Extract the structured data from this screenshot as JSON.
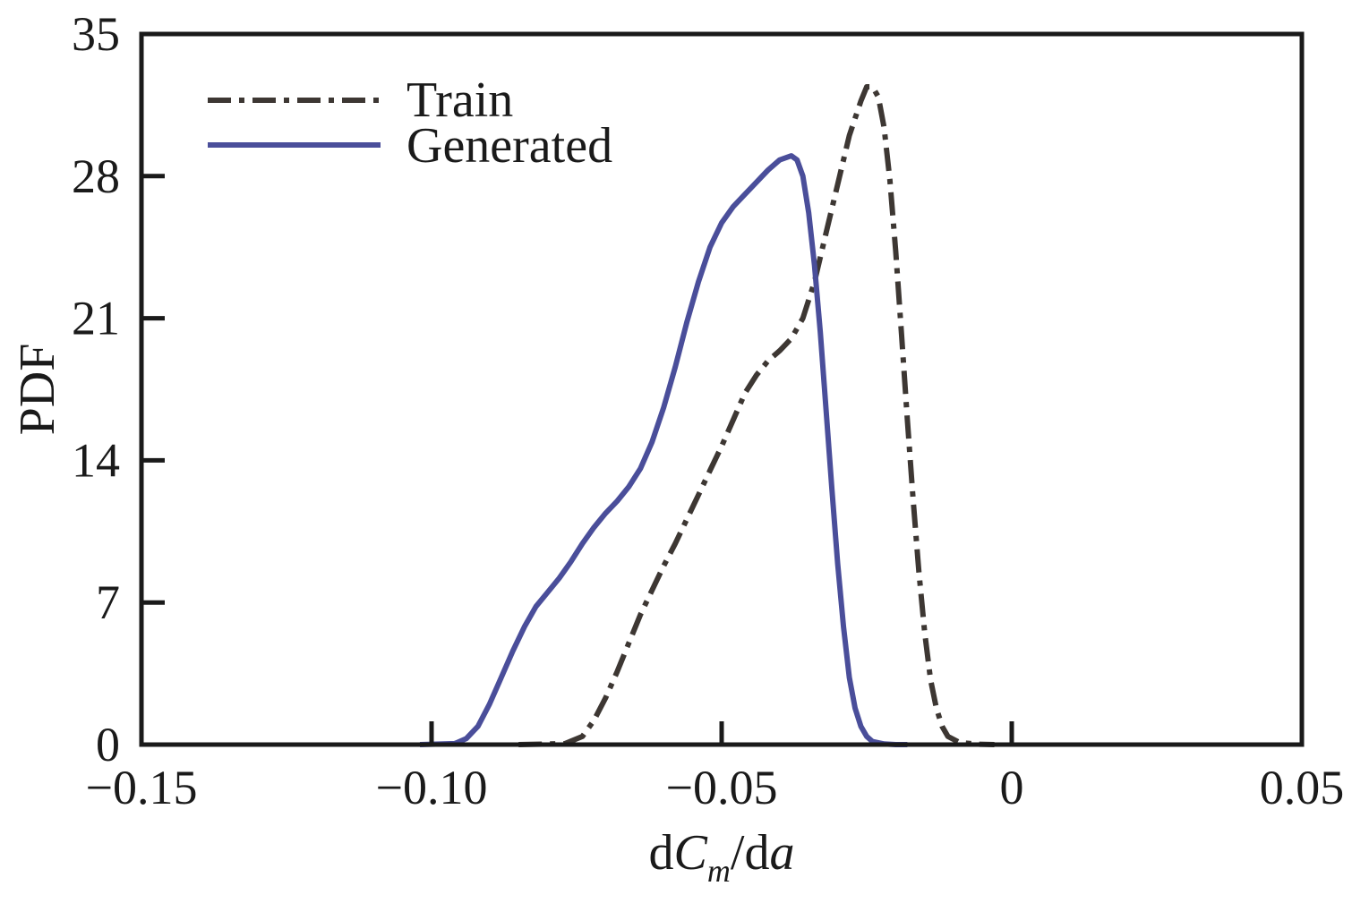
{
  "chart_data": {
    "type": "line",
    "title": "",
    "xlabel": {
      "prefix": "d",
      "var": "C",
      "sub": "m",
      "mid": "/d",
      "var2": "a"
    },
    "ylabel": "PDF",
    "xlim": [
      -0.15,
      0.05
    ],
    "ylim": [
      0,
      35
    ],
    "xticks": [
      -0.15,
      -0.1,
      -0.05,
      0,
      0.05
    ],
    "xtick_labels": [
      "−0.15",
      "−0.10",
      "−0.05",
      "0",
      "0.05"
    ],
    "yticks": [
      0,
      7,
      14,
      21,
      28,
      35
    ],
    "ytick_labels": [
      "0",
      "7",
      "14",
      "21",
      "28",
      "35"
    ],
    "grid": false,
    "legend_position": "top-left",
    "series": [
      {
        "name": "Train",
        "color": "#3d3733",
        "dash": "dashdot",
        "x": [
          -0.085,
          -0.077,
          -0.074,
          -0.072,
          -0.07,
          -0.068,
          -0.066,
          -0.064,
          -0.062,
          -0.06,
          -0.058,
          -0.056,
          -0.054,
          -0.052,
          -0.05,
          -0.048,
          -0.046,
          -0.044,
          -0.042,
          -0.04,
          -0.038,
          -0.036,
          -0.034,
          -0.032,
          -0.03,
          -0.028,
          -0.026,
          -0.025,
          -0.024,
          -0.023,
          -0.022,
          -0.021,
          -0.02,
          -0.019,
          -0.018,
          -0.017,
          -0.016,
          -0.015,
          -0.014,
          -0.013,
          -0.012,
          -0.011,
          -0.009,
          -0.006,
          -0.003
        ],
        "y": [
          0,
          0.05,
          0.4,
          1.2,
          2.3,
          3.6,
          5.0,
          6.4,
          7.6,
          8.8,
          9.9,
          11.1,
          12.3,
          13.5,
          14.7,
          16.0,
          17.3,
          18.2,
          18.9,
          19.4,
          20.0,
          21.0,
          22.8,
          25.2,
          27.6,
          30.0,
          31.7,
          32.4,
          32.4,
          31.9,
          30.4,
          27.8,
          24.3,
          20.2,
          16.0,
          12.1,
          8.5,
          5.5,
          3.2,
          1.8,
          0.9,
          0.4,
          0.1,
          0.02,
          0
        ]
      },
      {
        "name": "Generated",
        "color": "#4a4e9a",
        "dash": "solid",
        "x": [
          -0.102,
          -0.096,
          -0.094,
          -0.092,
          -0.09,
          -0.088,
          -0.086,
          -0.084,
          -0.082,
          -0.08,
          -0.078,
          -0.076,
          -0.074,
          -0.072,
          -0.07,
          -0.068,
          -0.066,
          -0.064,
          -0.062,
          -0.06,
          -0.058,
          -0.056,
          -0.054,
          -0.052,
          -0.05,
          -0.048,
          -0.046,
          -0.044,
          -0.042,
          -0.04,
          -0.038,
          -0.037,
          -0.036,
          -0.035,
          -0.034,
          -0.033,
          -0.032,
          -0.031,
          -0.03,
          -0.029,
          -0.028,
          -0.027,
          -0.026,
          -0.025,
          -0.024,
          -0.022,
          -0.02,
          -0.018
        ],
        "y": [
          0,
          0.05,
          0.3,
          0.9,
          2.0,
          3.3,
          4.6,
          5.8,
          6.8,
          7.5,
          8.2,
          9.0,
          9.9,
          10.7,
          11.4,
          12.0,
          12.7,
          13.6,
          14.9,
          16.6,
          18.6,
          20.8,
          22.8,
          24.5,
          25.7,
          26.5,
          27.1,
          27.7,
          28.3,
          28.8,
          29.0,
          28.8,
          28.0,
          26.2,
          23.6,
          20.3,
          16.5,
          12.6,
          8.9,
          5.8,
          3.3,
          1.8,
          0.9,
          0.4,
          0.15,
          0.03,
          0,
          0
        ]
      }
    ]
  }
}
